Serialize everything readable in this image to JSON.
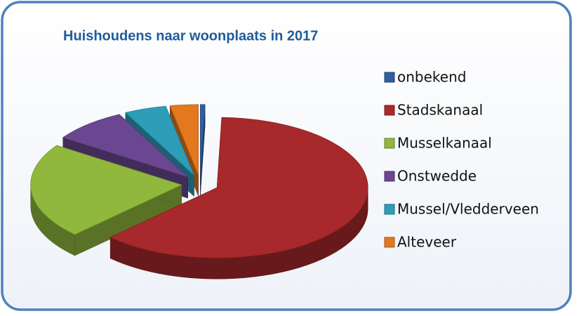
{
  "chart_data": {
    "type": "pie",
    "title": "Huishoudens naar woonplaats in 2017",
    "categories": [
      "onbekend",
      "Stadskanaal",
      "Musselkanaal",
      "Onstwedde",
      "Mussel/Vledderveen",
      "Alteveer"
    ],
    "values": [
      0.5,
      62,
      22,
      8,
      4.5,
      3
    ],
    "colors": [
      "#2e5fa0",
      "#a8292b",
      "#8fb83c",
      "#6a4790",
      "#2d9db8",
      "#e3781e"
    ],
    "legend": "right"
  }
}
